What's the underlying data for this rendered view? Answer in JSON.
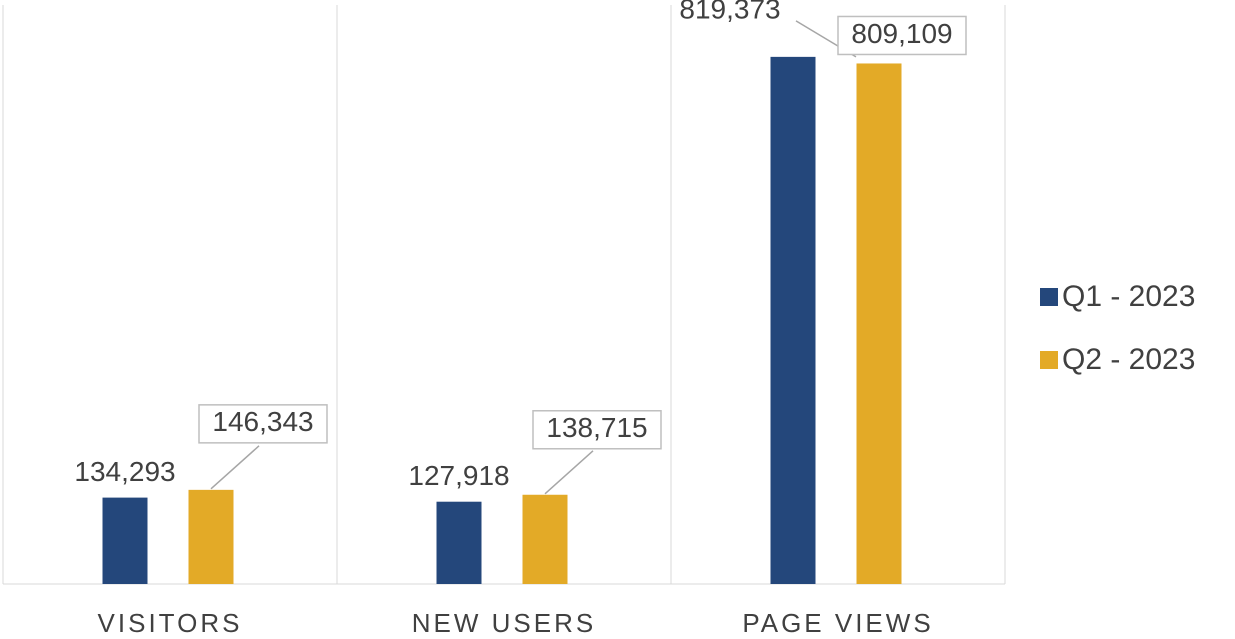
{
  "chart_data": {
    "type": "bar",
    "categories": [
      "VISITORS",
      "NEW USERS",
      "PAGE VIEWS"
    ],
    "series": [
      {
        "name": "Q1 - 2023",
        "color": "#24477b",
        "values": [
          134293,
          127918,
          819373
        ],
        "value_labels": [
          "134,293",
          "127,918",
          "819,373"
        ]
      },
      {
        "name": "Q2 - 2023",
        "color": "#e3aa27",
        "values": [
          146343,
          138715,
          809109
        ],
        "value_labels": [
          "146,343",
          "138,715",
          "809,109"
        ]
      }
    ],
    "ylim": [
      0,
      900000
    ],
    "legend": "right"
  }
}
